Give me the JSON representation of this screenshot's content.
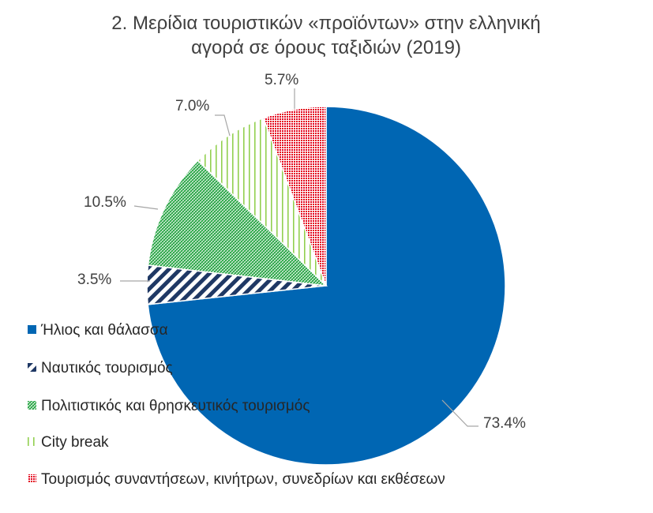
{
  "chart_data": {
    "type": "pie",
    "title": "2. Μερίδια τουριστικών «προϊόντων» στην ελληνική αγορά σε όρους ταξιδιών (2019)",
    "title_lines": [
      "2. Μερίδια τουριστικών «προϊόντων» στην ελληνική",
      "αγορά σε όρους ταξιδιών (2019)"
    ],
    "unit": "%",
    "legend_position": "bottom-left",
    "series": [
      {
        "name": "Ήλιος και θάλασσα",
        "value": 73.4,
        "label": "73.4%",
        "color": "#0066b3",
        "pattern": "solid"
      },
      {
        "name": "Ναυτικός τουρισμός",
        "value": 3.5,
        "label": "3.5%",
        "color": "#1f3864",
        "pattern": "wide-diagonal-stripes"
      },
      {
        "name": "Πολιτιστικός και θρησκευτικός τουρισμός",
        "value": 10.5,
        "label": "10.5%",
        "color": "#2ea84a",
        "pattern": "diagonal-hatch"
      },
      {
        "name": "City break",
        "value": 7.0,
        "label": "7.0%",
        "color": "#92d050",
        "pattern": "vertical-lines"
      },
      {
        "name": "Τουρισμός συναντήσεων, κινήτρων, συνεδρίων και εκθέσεων",
        "value": 5.7,
        "label": "5.7%",
        "color": "#e3001b",
        "pattern": "dotted-grid"
      }
    ]
  }
}
